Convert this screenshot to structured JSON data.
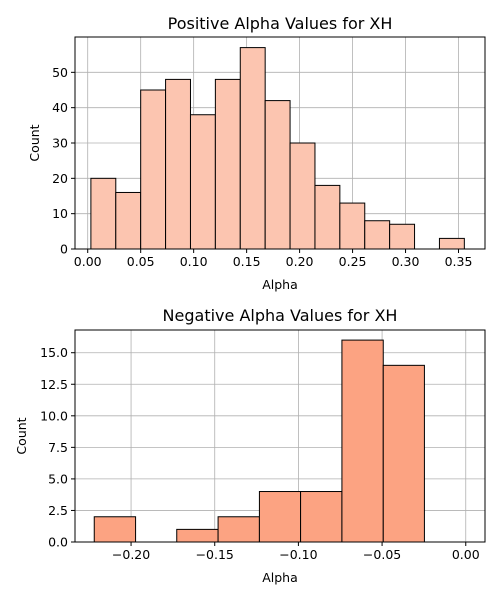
{
  "chart_data": [
    {
      "type": "histogram",
      "title": "Positive Alpha Values for XH",
      "xlabel": "Alpha",
      "ylabel": "Count",
      "xlim": [
        -0.012,
        0.375
      ],
      "ylim": [
        0,
        60
      ],
      "xticks": [
        0.0,
        0.05,
        0.1,
        0.15,
        0.2,
        0.25,
        0.3,
        0.35
      ],
      "xtick_labels": [
        "0.00",
        "0.05",
        "0.10",
        "0.15",
        "0.20",
        "0.25",
        "0.30",
        "0.35"
      ],
      "yticks": [
        0,
        10,
        20,
        30,
        40,
        50
      ],
      "ytick_labels": [
        "0",
        "10",
        "20",
        "30",
        "40",
        "50"
      ],
      "bin_edges": [
        0.003,
        0.0265,
        0.05,
        0.0735,
        0.097,
        0.1205,
        0.144,
        0.1675,
        0.191,
        0.2145,
        0.238,
        0.2615,
        0.285,
        0.3085,
        0.332,
        0.3555
      ],
      "counts": [
        20,
        16,
        45,
        48,
        38,
        48,
        57,
        42,
        30,
        18,
        13,
        8,
        7,
        0,
        3
      ],
      "color": "#fcc5b0",
      "grid": true
    },
    {
      "type": "histogram",
      "title": "Negative Alpha Values for XH",
      "xlabel": "Alpha",
      "ylabel": "Count",
      "xlim": [
        -0.2335,
        0.0115
      ],
      "ylim": [
        0,
        16.8
      ],
      "xticks": [
        -0.2,
        -0.15,
        -0.1,
        -0.05,
        0.0
      ],
      "xtick_labels": [
        "−0.20",
        "−0.15",
        "−0.10",
        "−0.05",
        "0.00"
      ],
      "yticks": [
        0.0,
        2.5,
        5.0,
        7.5,
        10.0,
        12.5,
        15.0
      ],
      "ytick_labels": [
        "0.0",
        "2.5",
        "5.0",
        "7.5",
        "10.0",
        "12.5",
        "15.0"
      ],
      "bin_edges": [
        -0.222,
        -0.1973,
        -0.1727,
        -0.148,
        -0.1233,
        -0.0987,
        -0.074,
        -0.0493,
        -0.0247,
        0.0
      ],
      "counts": [
        2,
        0,
        1,
        2,
        4,
        4,
        16,
        14,
        0
      ],
      "color": "#fca382",
      "grid": true
    }
  ]
}
